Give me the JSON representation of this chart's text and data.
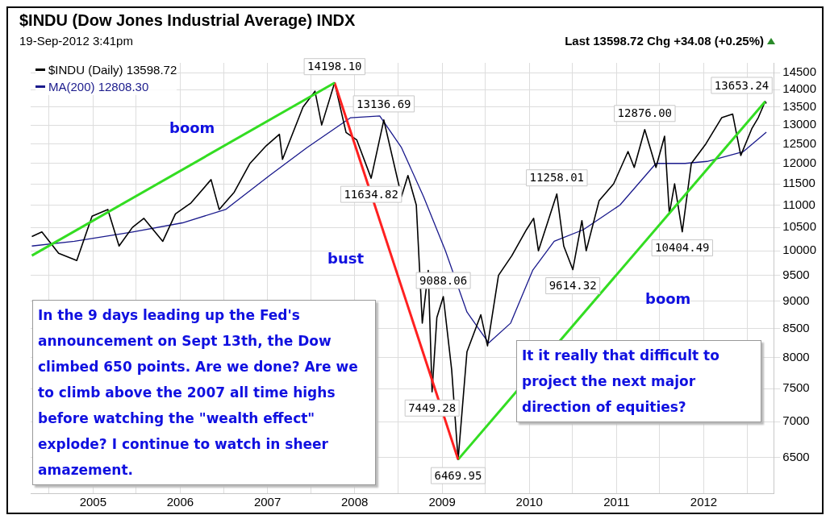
{
  "chart_data": {
    "type": "line",
    "title": "$INDU (Dow Jones Industrial Average) INDX",
    "subtitle": "19-Sep-2012 3:41pm",
    "series": [
      {
        "name": "$INDU (Daily) 13598.72",
        "color": "#000000",
        "x": [
          "2004-04-20",
          "2004-06-01",
          "2004-08-10",
          "2004-10-25",
          "2004-12-28",
          "2005-03-04",
          "2005-04-20",
          "2005-06-15",
          "2005-08-02",
          "2005-10-20",
          "2005-12-12",
          "2006-02-15",
          "2006-05-10",
          "2006-06-13",
          "2006-08-15",
          "2006-10-20",
          "2006-12-27",
          "2007-02-20",
          "2007-03-05",
          "2007-05-30",
          "2007-07-19",
          "2007-08-16",
          "2007-10-09",
          "2007-11-26",
          "2008-01-10",
          "2008-03-10",
          "2008-05-02",
          "2008-07-15",
          "2008-08-11",
          "2008-09-15",
          "2008-10-10",
          "2008-11-04",
          "2008-11-20",
          "2008-12-10",
          "2009-01-06",
          "2009-02-10",
          "2009-03-09",
          "2009-04-15",
          "2009-06-12",
          "2009-07-10",
          "2009-08-25",
          "2009-10-20",
          "2009-12-20",
          "2010-01-19",
          "2010-02-08",
          "2010-04-26",
          "2010-05-25",
          "2010-07-02",
          "2010-08-09",
          "2010-08-27",
          "2010-10-20",
          "2010-12-20",
          "2011-02-18",
          "2011-03-16",
          "2011-04-29",
          "2011-06-15",
          "2011-07-21",
          "2011-08-10",
          "2011-09-01",
          "2011-10-03",
          "2011-11-10",
          "2012-01-10",
          "2012-03-16",
          "2012-05-01",
          "2012-06-04",
          "2012-07-20",
          "2012-08-16",
          "2012-09-14",
          "2012-09-19"
        ],
        "values": [
          10300,
          10400,
          9950,
          9800,
          10750,
          10900,
          10100,
          10500,
          10700,
          10200,
          10800,
          11050,
          11600,
          10900,
          11300,
          12000,
          12450,
          12750,
          12100,
          13500,
          13950,
          13000,
          14198.1,
          12800,
          12600,
          11634.82,
          13136.69,
          11200,
          11700,
          11000,
          8600,
          9600,
          7449.28,
          8700,
          9088.06,
          7800,
          6469.95,
          8100,
          8750,
          8200,
          9500,
          9900,
          10450,
          10700,
          10000,
          11258.01,
          10100,
          9614.32,
          10650,
          10000,
          11100,
          11500,
          12300,
          11900,
          12876.0,
          11900,
          12700,
          10800,
          11500,
          10404.49,
          12000,
          12500,
          13200,
          13300,
          12200,
          12900,
          13200,
          13653.24,
          13598.72
        ]
      },
      {
        "name": "MA(200) 12808.30",
        "color": "#1a1a8c",
        "x": [
          "2004-04-20",
          "2004-10-15",
          "2005-06-15",
          "2006-01-10",
          "2006-07-10",
          "2007-01-10",
          "2007-06-15",
          "2007-12-15",
          "2008-04-15",
          "2008-07-15",
          "2008-10-15",
          "2009-01-15",
          "2009-04-15",
          "2009-07-15",
          "2009-10-15",
          "2010-01-15",
          "2010-04-15",
          "2010-08-15",
          "2011-01-15",
          "2011-06-15",
          "2011-10-15",
          "2012-01-15",
          "2012-06-15",
          "2012-09-19"
        ],
        "values": [
          10100,
          10200,
          10400,
          10600,
          10900,
          11700,
          12400,
          13200,
          13250,
          12400,
          11200,
          10000,
          8800,
          8250,
          8600,
          9600,
          10200,
          10450,
          11000,
          12000,
          12000,
          12050,
          12300,
          12808.3
        ]
      },
      {
        "color": "#33dd22",
        "x": [
          "2004-04-20",
          "2007-10-09"
        ],
        "values": [
          9900,
          14198.1
        ]
      },
      {
        "color": "#ff2020",
        "x": [
          "2007-10-09",
          "2009-03-09"
        ],
        "values": [
          14198.1,
          6469.95
        ]
      },
      {
        "color": "#33dd22",
        "x": [
          "2009-03-09",
          "2012-09-14"
        ],
        "values": [
          6469.95,
          13653.24
        ]
      }
    ],
    "xlim": [
      "2004-04-15",
      "2012-10-20"
    ],
    "xticks": [
      {
        "value": "2004-07-01",
        "label": null
      },
      {
        "value": "2005-01-01",
        "label": "2005"
      },
      {
        "value": "2005-07-01",
        "label": null
      },
      {
        "value": "2006-01-01",
        "label": "2006"
      },
      {
        "value": "2006-07-01",
        "label": null
      },
      {
        "value": "2007-01-01",
        "label": "2007"
      },
      {
        "value": "2007-07-01",
        "label": null
      },
      {
        "value": "2008-01-01",
        "label": "2008"
      },
      {
        "value": "2008-07-01",
        "label": null
      },
      {
        "value": "2009-01-01",
        "label": "2009"
      },
      {
        "value": "2009-07-01",
        "label": null
      },
      {
        "value": "2010-01-01",
        "label": "2010"
      },
      {
        "value": "2010-07-01",
        "label": null
      },
      {
        "value": "2011-01-01",
        "label": "2011"
      },
      {
        "value": "2011-07-01",
        "label": null
      },
      {
        "value": "2012-01-01",
        "label": "2012"
      },
      {
        "value": "2012-07-01",
        "label": null
      }
    ],
    "ylim": [
      6030,
      14800
    ],
    "yticks": [
      6500,
      7000,
      7500,
      8000,
      8500,
      9000,
      9500,
      10000,
      10500,
      11000,
      11500,
      12000,
      12500,
      13000,
      13500,
      14000,
      14500
    ],
    "log": "y",
    "grid": true,
    "legend": "top left",
    "annotations": [
      "Last 13598.72 Chg +34.08 (+0.25%)",
      "In the 9 days leading up the Fed's announcement on Sept 13th, the Dow climbed 650 points. Are we done? Are we to climb above the 2007 all time highs before watching the \"wealth effect\" explode? I continue to watch in sheer amazement.",
      "It it really that difficult to project the next major direction of equities?",
      {
        "text": "14198.10",
        "x": "2007-10-09",
        "y": 14198.1
      },
      {
        "text": "13136.69",
        "x": "2008-05-02",
        "y": 13136.69
      },
      {
        "text": "11634.82",
        "x": "2008-03-10",
        "y": 11634.82
      },
      {
        "text": "9088.06",
        "x": "2009-01-06",
        "y": 9088.06
      },
      {
        "text": "7449.28",
        "x": "2008-11-20",
        "y": 7449.28
      },
      {
        "text": "6469.95",
        "x": "2009-03-09",
        "y": 6469.95
      },
      {
        "text": "11258.01",
        "x": "2010-04-26",
        "y": 11258.01
      },
      {
        "text": "9614.32",
        "x": "2010-07-02",
        "y": 9614.32
      },
      {
        "text": "12876.00",
        "x": "2011-04-29",
        "y": 12876.0
      },
      {
        "text": "10404.49",
        "x": "2011-10-03",
        "y": 10404.49
      },
      {
        "text": "13653.24",
        "x": "2012-09-14",
        "y": 13653.24
      },
      "boom",
      "bust",
      "boom"
    ]
  }
}
